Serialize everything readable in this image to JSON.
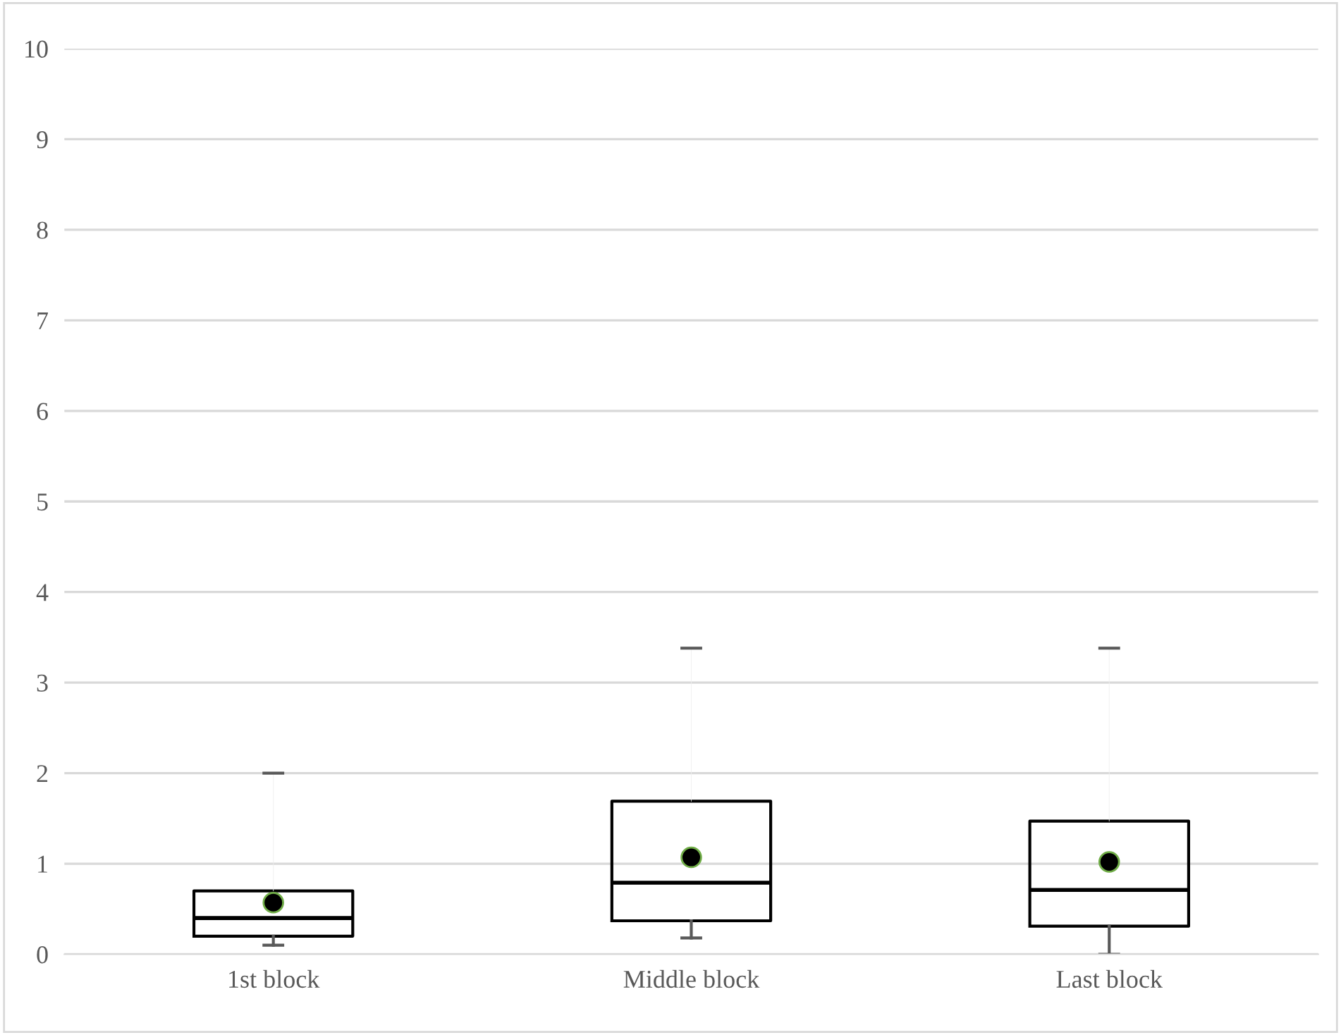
{
  "chart_data": {
    "type": "box",
    "categories": [
      "1st block",
      "Middle block",
      "Last block"
    ],
    "boxes": [
      {
        "low": 0.1,
        "q1": 0.2,
        "median": 0.4,
        "q3": 0.7,
        "high": 2.0,
        "mean": 0.57
      },
      {
        "low": 0.18,
        "q1": 0.37,
        "median": 0.79,
        "q3": 1.69,
        "high": 3.38,
        "mean": 1.07
      },
      {
        "low": 0.0,
        "q1": 0.31,
        "median": 0.71,
        "q3": 1.47,
        "high": 3.38,
        "mean": 1.02
      }
    ],
    "ylim": [
      0,
      10
    ],
    "yticks": [
      0,
      1,
      2,
      3,
      4,
      5,
      6,
      7,
      8,
      9,
      10
    ],
    "grid": "y"
  }
}
